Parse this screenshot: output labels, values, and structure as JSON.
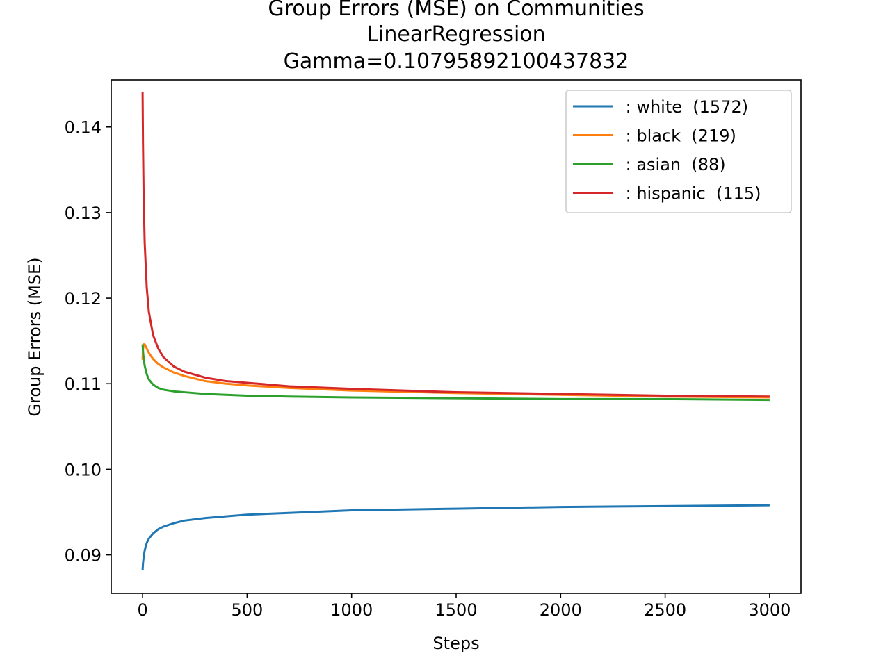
{
  "chart_data": {
    "type": "line",
    "title_lines": [
      "Group Errors (MSE) on Communities",
      "LinearRegression",
      "Gamma=0.10795892100437832"
    ],
    "xlabel": "Steps",
    "ylabel": "Group Errors (MSE)",
    "xlim": [
      -150,
      3150
    ],
    "ylim": [
      0.0855,
      0.1455
    ],
    "xticks": [
      0,
      500,
      1000,
      1500,
      2000,
      2500,
      3000
    ],
    "xtick_labels": [
      "0",
      "500",
      "1000",
      "1500",
      "2000",
      "2500",
      "3000"
    ],
    "yticks": [
      0.09,
      0.1,
      0.11,
      0.12,
      0.13,
      0.14
    ],
    "ytick_labels": [
      "0.09",
      "0.10",
      "0.11",
      "0.12",
      "0.13",
      "0.14"
    ],
    "grid": false,
    "legend_position": "top-right",
    "x": [
      0,
      2,
      5,
      10,
      20,
      30,
      50,
      75,
      100,
      150,
      200,
      300,
      400,
      500,
      700,
      1000,
      1500,
      2000,
      2500,
      3000
    ],
    "series": [
      {
        "name": " : white  (1572)",
        "color": "#1f77b4",
        "values": [
          0.0882,
          0.089,
          0.0897,
          0.0905,
          0.0914,
          0.0919,
          0.0925,
          0.093,
          0.0933,
          0.0937,
          0.094,
          0.0943,
          0.0945,
          0.0947,
          0.0949,
          0.0952,
          0.0954,
          0.0956,
          0.0957,
          0.0958
        ]
      },
      {
        "name": " : black  (219)",
        "color": "#ff7f0e",
        "values": [
          0.1128,
          0.114,
          0.1146,
          0.1146,
          0.1141,
          0.1136,
          0.1129,
          0.1123,
          0.1119,
          0.1113,
          0.1109,
          0.1103,
          0.11,
          0.1098,
          0.1095,
          0.1092,
          0.1089,
          0.1087,
          0.1085,
          0.1084
        ]
      },
      {
        "name": " : asian  (88)",
        "color": "#2ca02c",
        "values": [
          0.1146,
          0.1138,
          0.113,
          0.1121,
          0.1111,
          0.1105,
          0.1099,
          0.1095,
          0.1093,
          0.1091,
          0.109,
          0.1088,
          0.1087,
          0.1086,
          0.1085,
          0.1084,
          0.1083,
          0.1082,
          0.1082,
          0.1081
        ]
      },
      {
        "name": " : hispanic  (115)",
        "color": "#d62728",
        "values": [
          0.1441,
          0.138,
          0.132,
          0.1265,
          0.1212,
          0.1184,
          0.1157,
          0.1141,
          0.1131,
          0.112,
          0.1114,
          0.1107,
          0.1103,
          0.1101,
          0.1097,
          0.1094,
          0.109,
          0.1088,
          0.1086,
          0.1085
        ]
      }
    ]
  }
}
